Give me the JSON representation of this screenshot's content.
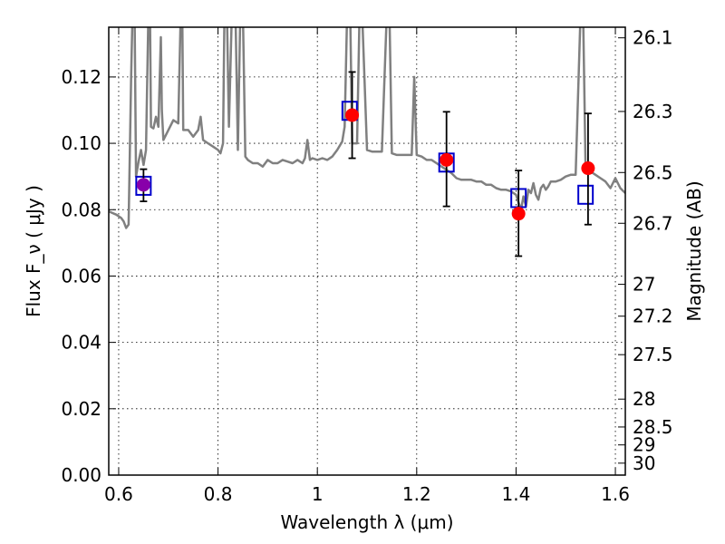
{
  "chart_data": {
    "type": "scatter",
    "xlabel": "Wavelength  λ (μm)",
    "ylabel": "Flux  F_ν  ( μJy )",
    "y2label": "Magnitude (AB)",
    "xlim": [
      0.58,
      1.62
    ],
    "ylim": [
      0.0,
      0.135
    ],
    "grid": true,
    "x_ticks": [
      0.6,
      0.8,
      1.0,
      1.2,
      1.4,
      1.6
    ],
    "x_tick_labels": [
      "0.6",
      "0.8",
      "1",
      "1.2",
      "1.4",
      "1.6"
    ],
    "y_ticks": [
      0.0,
      0.02,
      0.04,
      0.06,
      0.08,
      0.1,
      0.12
    ],
    "y_tick_labels": [
      "0.00",
      "0.02",
      "0.04",
      "0.06",
      "0.08",
      "0.10",
      "0.12"
    ],
    "mag_ticks": [
      {
        "label": "26.1",
        "flux": 0.1318
      },
      {
        "label": "26.3",
        "flux": 0.1096
      },
      {
        "label": "26.5",
        "flux": 0.0912
      },
      {
        "label": "26.7",
        "flux": 0.0759
      },
      {
        "label": "27",
        "flux": 0.0575
      },
      {
        "label": "27.2",
        "flux": 0.0479
      },
      {
        "label": "27.5",
        "flux": 0.0363
      },
      {
        "label": "28",
        "flux": 0.0229
      },
      {
        "label": "28.5",
        "flux": 0.0145
      },
      {
        "label": "29",
        "flux": 0.0091
      },
      {
        "label": "30",
        "flux": 0.0036
      }
    ],
    "series": [
      {
        "kind": "line",
        "color": "#808080",
        "points": [
          [
            0.58,
            0.0795
          ],
          [
            0.595,
            0.0785
          ],
          [
            0.605,
            0.0775
          ],
          [
            0.61,
            0.0765
          ],
          [
            0.615,
            0.0745
          ],
          [
            0.62,
            0.0755
          ],
          [
            0.625,
            0.12
          ],
          [
            0.628,
            0.14
          ],
          [
            0.632,
            0.14
          ],
          [
            0.635,
            0.09
          ],
          [
            0.64,
            0.0945
          ],
          [
            0.645,
            0.098
          ],
          [
            0.65,
            0.0935
          ],
          [
            0.655,
            0.098
          ],
          [
            0.66,
            0.14
          ],
          [
            0.663,
            0.14
          ],
          [
            0.665,
            0.105
          ],
          [
            0.67,
            0.1045
          ],
          [
            0.675,
            0.108
          ],
          [
            0.68,
            0.105
          ],
          [
            0.685,
            0.132
          ],
          [
            0.687,
            0.11
          ],
          [
            0.69,
            0.101
          ],
          [
            0.7,
            0.104
          ],
          [
            0.71,
            0.107
          ],
          [
            0.72,
            0.106
          ],
          [
            0.725,
            0.14
          ],
          [
            0.728,
            0.14
          ],
          [
            0.73,
            0.104
          ],
          [
            0.74,
            0.104
          ],
          [
            0.75,
            0.102
          ],
          [
            0.76,
            0.104
          ],
          [
            0.765,
            0.108
          ],
          [
            0.77,
            0.101
          ],
          [
            0.78,
            0.1
          ],
          [
            0.79,
            0.099
          ],
          [
            0.8,
            0.098
          ],
          [
            0.805,
            0.097
          ],
          [
            0.81,
            0.1
          ],
          [
            0.813,
            0.14
          ],
          [
            0.818,
            0.14
          ],
          [
            0.822,
            0.105
          ],
          [
            0.828,
            0.14
          ],
          [
            0.835,
            0.14
          ],
          [
            0.84,
            0.098
          ],
          [
            0.845,
            0.14
          ],
          [
            0.85,
            0.14
          ],
          [
            0.855,
            0.096
          ],
          [
            0.86,
            0.095
          ],
          [
            0.87,
            0.094
          ],
          [
            0.88,
            0.094
          ],
          [
            0.89,
            0.093
          ],
          [
            0.9,
            0.095
          ],
          [
            0.91,
            0.094
          ],
          [
            0.92,
            0.094
          ],
          [
            0.93,
            0.095
          ],
          [
            0.94,
            0.0945
          ],
          [
            0.95,
            0.094
          ],
          [
            0.96,
            0.095
          ],
          [
            0.97,
            0.094
          ],
          [
            0.975,
            0.0955
          ],
          [
            0.98,
            0.101
          ],
          [
            0.985,
            0.095
          ],
          [
            0.99,
            0.0955
          ],
          [
            1.0,
            0.095
          ],
          [
            1.01,
            0.0955
          ],
          [
            1.02,
            0.095
          ],
          [
            1.03,
            0.096
          ],
          [
            1.04,
            0.098
          ],
          [
            1.05,
            0.1005
          ],
          [
            1.055,
            0.105
          ],
          [
            1.06,
            0.14
          ],
          [
            1.066,
            0.14
          ],
          [
            1.07,
            0.1
          ],
          [
            1.08,
            0.1
          ],
          [
            1.085,
            0.14
          ],
          [
            1.09,
            0.14
          ],
          [
            1.1,
            0.098
          ],
          [
            1.11,
            0.0975
          ],
          [
            1.12,
            0.0975
          ],
          [
            1.13,
            0.0975
          ],
          [
            1.14,
            0.14
          ],
          [
            1.145,
            0.14
          ],
          [
            1.15,
            0.097
          ],
          [
            1.16,
            0.0965
          ],
          [
            1.17,
            0.0965
          ],
          [
            1.18,
            0.0965
          ],
          [
            1.19,
            0.0965
          ],
          [
            1.195,
            0.12
          ],
          [
            1.2,
            0.0965
          ],
          [
            1.21,
            0.096
          ],
          [
            1.22,
            0.095
          ],
          [
            1.23,
            0.095
          ],
          [
            1.24,
            0.094
          ],
          [
            1.25,
            0.093
          ],
          [
            1.26,
            0.092
          ],
          [
            1.27,
            0.091
          ],
          [
            1.28,
            0.0895
          ],
          [
            1.29,
            0.089
          ],
          [
            1.3,
            0.089
          ],
          [
            1.31,
            0.089
          ],
          [
            1.32,
            0.0885
          ],
          [
            1.33,
            0.0885
          ],
          [
            1.34,
            0.0875
          ],
          [
            1.35,
            0.0875
          ],
          [
            1.36,
            0.0865
          ],
          [
            1.37,
            0.086
          ],
          [
            1.38,
            0.086
          ],
          [
            1.39,
            0.0855
          ],
          [
            1.4,
            0.0845
          ],
          [
            1.41,
            0.08
          ],
          [
            1.415,
            0.084
          ],
          [
            1.42,
            0.081
          ],
          [
            1.425,
            0.086
          ],
          [
            1.43,
            0.085
          ],
          [
            1.435,
            0.088
          ],
          [
            1.44,
            0.0845
          ],
          [
            1.445,
            0.083
          ],
          [
            1.45,
            0.0865
          ],
          [
            1.455,
            0.0875
          ],
          [
            1.46,
            0.086
          ],
          [
            1.465,
            0.087
          ],
          [
            1.47,
            0.0885
          ],
          [
            1.48,
            0.0885
          ],
          [
            1.49,
            0.089
          ],
          [
            1.5,
            0.09
          ],
          [
            1.51,
            0.0905
          ],
          [
            1.52,
            0.0905
          ],
          [
            1.53,
            0.14
          ],
          [
            1.535,
            0.14
          ],
          [
            1.54,
            0.0915
          ],
          [
            1.55,
            0.0915
          ],
          [
            1.56,
            0.0905
          ],
          [
            1.57,
            0.0895
          ],
          [
            1.58,
            0.0885
          ],
          [
            1.59,
            0.0865
          ],
          [
            1.6,
            0.0895
          ],
          [
            1.61,
            0.0865
          ],
          [
            1.62,
            0.085
          ]
        ]
      },
      {
        "kind": "model_boxes",
        "color": "#0000cc",
        "points": [
          {
            "x": 0.65,
            "y": 0.0872
          },
          {
            "x": 1.065,
            "y": 0.1098
          },
          {
            "x": 1.26,
            "y": 0.0942
          },
          {
            "x": 1.405,
            "y": 0.0835
          },
          {
            "x": 1.54,
            "y": 0.0845
          }
        ]
      },
      {
        "kind": "observed_points",
        "color": "#ff0000",
        "errorbar_color": "#000000",
        "points": [
          {
            "x": 0.65,
            "y": 0.0875,
            "ylow": 0.0825,
            "yhigh": 0.0922,
            "color": "#8800aa"
          },
          {
            "x": 1.07,
            "y": 0.1085,
            "ylow": 0.0955,
            "yhigh": 0.1215
          },
          {
            "x": 1.26,
            "y": 0.095,
            "ylow": 0.081,
            "yhigh": 0.1095
          },
          {
            "x": 1.405,
            "y": 0.0788,
            "ylow": 0.066,
            "yhigh": 0.0918
          },
          {
            "x": 1.545,
            "y": 0.0925,
            "ylow": 0.0755,
            "yhigh": 0.109
          }
        ]
      }
    ]
  }
}
